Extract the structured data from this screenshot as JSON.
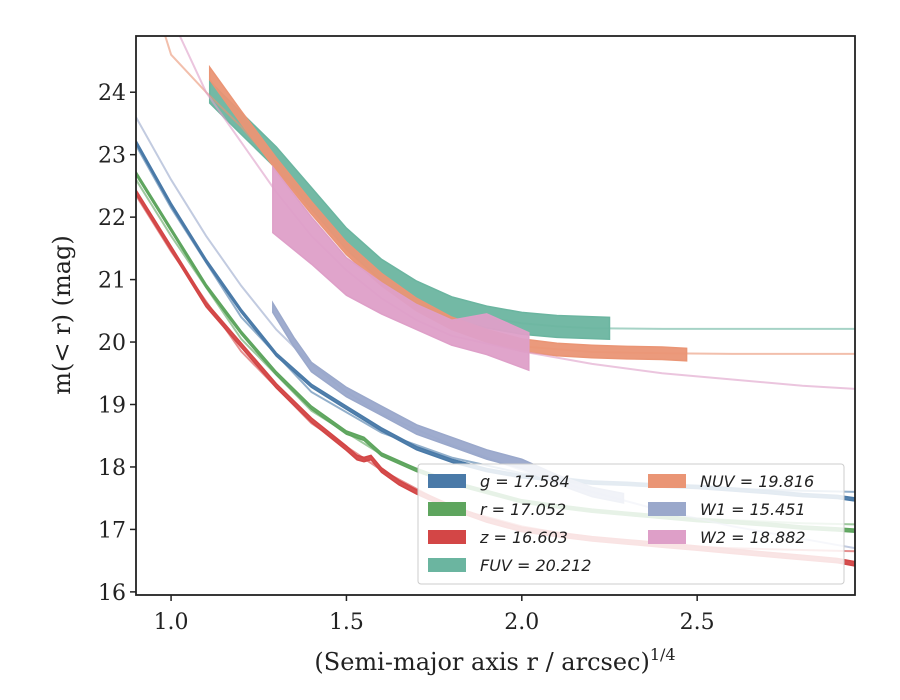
{
  "chart_data": {
    "type": "line",
    "xlabel": "(Semi-major axis r / arcsec)",
    "xlabel_exponent": "1/4",
    "ylabel": "m(< r) (mag)",
    "xlim": [
      0.9,
      2.95
    ],
    "ylim": [
      24.9,
      15.95
    ],
    "y_inverted": true,
    "x_ticks": [
      1.0,
      1.5,
      2.0,
      2.5
    ],
    "x_tick_labels": [
      "1.0",
      "1.5",
      "2.0",
      "2.5"
    ],
    "y_ticks": [
      16,
      17,
      18,
      19,
      20,
      21,
      22,
      23,
      24
    ],
    "y_tick_labels": [
      "16",
      "17",
      "18",
      "19",
      "20",
      "21",
      "22",
      "23",
      "24"
    ],
    "grid": false,
    "legend_position": "lower-right",
    "legend_columns": 2,
    "series": [
      {
        "name": "g",
        "legend_label": "g = 17.584",
        "color": "#4a7aa8",
        "band_width_mag": 0.05,
        "data": [
          [
            0.9,
            23.2
          ],
          [
            1.0,
            22.2
          ],
          [
            1.1,
            21.3
          ],
          [
            1.2,
            20.5
          ],
          [
            1.3,
            19.8
          ],
          [
            1.4,
            19.3
          ],
          [
            1.5,
            18.95
          ],
          [
            1.6,
            18.6
          ],
          [
            1.7,
            18.3
          ],
          [
            1.8,
            18.1
          ],
          [
            1.9,
            17.95
          ],
          [
            2.0,
            17.85
          ],
          [
            2.1,
            17.8
          ],
          [
            2.2,
            17.75
          ],
          [
            2.3,
            17.73
          ],
          [
            2.4,
            17.7
          ],
          [
            2.5,
            17.68
          ],
          [
            2.6,
            17.64
          ],
          [
            2.7,
            17.6
          ],
          [
            2.8,
            17.55
          ],
          [
            2.9,
            17.52
          ],
          [
            2.95,
            17.48
          ]
        ],
        "model": [
          [
            0.9,
            23.15
          ],
          [
            1.0,
            22.15
          ],
          [
            1.2,
            20.4
          ],
          [
            1.4,
            19.2
          ],
          [
            1.6,
            18.55
          ],
          [
            1.8,
            18.15
          ],
          [
            2.0,
            17.9
          ],
          [
            2.2,
            17.77
          ],
          [
            2.4,
            17.7
          ],
          [
            2.6,
            17.65
          ],
          [
            2.8,
            17.62
          ],
          [
            2.95,
            17.6
          ]
        ]
      },
      {
        "name": "r",
        "legend_label": "r = 17.052",
        "color": "#5ea55e",
        "band_width_mag": 0.05,
        "data": [
          [
            0.9,
            22.7
          ],
          [
            1.0,
            21.8
          ],
          [
            1.1,
            20.9
          ],
          [
            1.2,
            20.15
          ],
          [
            1.3,
            19.5
          ],
          [
            1.4,
            18.95
          ],
          [
            1.5,
            18.55
          ],
          [
            1.55,
            18.45
          ],
          [
            1.6,
            18.2
          ],
          [
            1.7,
            17.95
          ],
          [
            1.8,
            17.75
          ],
          [
            1.9,
            17.6
          ],
          [
            2.0,
            17.45
          ],
          [
            2.1,
            17.37
          ],
          [
            2.2,
            17.3
          ],
          [
            2.3,
            17.25
          ],
          [
            2.4,
            17.2
          ],
          [
            2.5,
            17.15
          ],
          [
            2.6,
            17.12
          ],
          [
            2.7,
            17.08
          ],
          [
            2.8,
            17.03
          ],
          [
            2.9,
            17.0
          ],
          [
            2.95,
            16.98
          ]
        ],
        "model": [
          [
            0.9,
            22.6
          ],
          [
            1.0,
            21.7
          ],
          [
            1.2,
            20.05
          ],
          [
            1.4,
            18.9
          ],
          [
            1.6,
            18.2
          ],
          [
            1.8,
            17.75
          ],
          [
            2.0,
            17.45
          ],
          [
            2.2,
            17.3
          ],
          [
            2.4,
            17.2
          ],
          [
            2.6,
            17.15
          ],
          [
            2.8,
            17.1
          ],
          [
            2.95,
            17.08
          ]
        ]
      },
      {
        "name": "z",
        "legend_label": "z = 16.603",
        "color": "#d34646",
        "band_width_mag": 0.07,
        "data": [
          [
            0.9,
            22.4
          ],
          [
            1.0,
            21.5
          ],
          [
            1.1,
            20.6
          ],
          [
            1.2,
            19.95
          ],
          [
            1.3,
            19.3
          ],
          [
            1.4,
            18.75
          ],
          [
            1.5,
            18.3
          ],
          [
            1.53,
            18.15
          ],
          [
            1.55,
            18.12
          ],
          [
            1.57,
            18.15
          ],
          [
            1.6,
            17.95
          ],
          [
            1.65,
            17.75
          ],
          [
            1.7,
            17.6
          ],
          [
            1.8,
            17.35
          ],
          [
            1.9,
            17.15
          ],
          [
            2.0,
            17.0
          ],
          [
            2.1,
            16.92
          ],
          [
            2.2,
            16.85
          ],
          [
            2.3,
            16.8
          ],
          [
            2.4,
            16.75
          ],
          [
            2.5,
            16.7
          ],
          [
            2.6,
            16.65
          ],
          [
            2.7,
            16.6
          ],
          [
            2.8,
            16.55
          ],
          [
            2.9,
            16.5
          ],
          [
            2.95,
            16.45
          ]
        ],
        "model": [
          [
            0.9,
            22.35
          ],
          [
            1.0,
            21.45
          ],
          [
            1.2,
            19.85
          ],
          [
            1.4,
            18.7
          ],
          [
            1.6,
            17.95
          ],
          [
            1.8,
            17.35
          ],
          [
            2.0,
            17.05
          ],
          [
            2.2,
            16.85
          ],
          [
            2.4,
            16.75
          ],
          [
            2.6,
            16.7
          ],
          [
            2.8,
            16.67
          ],
          [
            2.95,
            16.65
          ]
        ]
      },
      {
        "name": "FUV",
        "legend_label": "FUV = 20.212",
        "color": "#6bb5a0",
        "band_width_mag": 0.35,
        "data": [
          [
            1.11,
            24.0
          ],
          [
            1.2,
            23.5
          ],
          [
            1.3,
            22.95
          ],
          [
            1.4,
            22.3
          ],
          [
            1.5,
            21.65
          ],
          [
            1.6,
            21.15
          ],
          [
            1.7,
            20.8
          ],
          [
            1.8,
            20.55
          ],
          [
            1.9,
            20.4
          ],
          [
            2.0,
            20.3
          ],
          [
            2.1,
            20.25
          ],
          [
            2.25,
            20.22
          ]
        ],
        "model": [
          [
            1.9,
            20.4
          ],
          [
            2.0,
            20.3
          ],
          [
            2.1,
            20.25
          ],
          [
            2.2,
            20.22
          ],
          [
            2.4,
            20.21
          ],
          [
            2.6,
            20.21
          ],
          [
            2.95,
            20.21
          ]
        ]
      },
      {
        "name": "NUV",
        "legend_label": "NUV = 19.816",
        "color": "#ea9575",
        "band_width_mag": 0.2,
        "data": [
          [
            1.11,
            24.3
          ],
          [
            1.2,
            23.6
          ],
          [
            1.3,
            22.85
          ],
          [
            1.4,
            22.15
          ],
          [
            1.5,
            21.5
          ],
          [
            1.6,
            21.0
          ],
          [
            1.7,
            20.6
          ],
          [
            1.8,
            20.3
          ],
          [
            1.9,
            20.1
          ],
          [
            2.0,
            19.95
          ],
          [
            2.1,
            19.88
          ],
          [
            2.2,
            19.85
          ],
          [
            2.3,
            19.83
          ],
          [
            2.4,
            19.82
          ],
          [
            2.47,
            19.8
          ]
        ],
        "model": [
          [
            0.95,
            25.5
          ],
          [
            1.0,
            24.6
          ],
          [
            1.1,
            24.0
          ],
          [
            1.2,
            23.45
          ],
          [
            1.3,
            22.8
          ],
          [
            1.4,
            22.1
          ],
          [
            1.5,
            21.45
          ],
          [
            1.6,
            20.95
          ],
          [
            1.7,
            20.55
          ],
          [
            1.8,
            20.25
          ],
          [
            1.9,
            20.05
          ],
          [
            2.0,
            19.93
          ],
          [
            2.2,
            19.84
          ],
          [
            2.4,
            19.82
          ],
          [
            2.6,
            19.81
          ],
          [
            2.95,
            19.81
          ]
        ]
      },
      {
        "name": "W1",
        "legend_label": "W1 = 15.451",
        "color": "#9aa8cb",
        "band_width_mag": 0.15,
        "data": [
          [
            1.29,
            20.55
          ],
          [
            1.35,
            20.0
          ],
          [
            1.4,
            19.6
          ],
          [
            1.5,
            19.2
          ],
          [
            1.6,
            18.9
          ],
          [
            1.7,
            18.6
          ],
          [
            1.8,
            18.4
          ],
          [
            1.9,
            18.2
          ],
          [
            2.0,
            18.05
          ],
          [
            2.1,
            17.8
          ],
          [
            2.2,
            17.6
          ],
          [
            2.29,
            17.5
          ]
        ],
        "model": [
          [
            0.9,
            23.6
          ],
          [
            1.0,
            22.6
          ],
          [
            1.1,
            21.7
          ],
          [
            1.2,
            20.9
          ],
          [
            1.3,
            20.2
          ],
          [
            1.4,
            19.65
          ],
          [
            1.5,
            19.2
          ],
          [
            1.6,
            18.85
          ],
          [
            1.8,
            18.35
          ],
          [
            2.0,
            17.95
          ],
          [
            2.2,
            17.6
          ],
          [
            2.4,
            17.3
          ],
          [
            2.6,
            17.05
          ],
          [
            2.8,
            16.85
          ],
          [
            2.95,
            16.7
          ]
        ]
      },
      {
        "name": "W2",
        "legend_label": "W2 = 18.882",
        "color": "#de9fc8",
        "band_lower": [
          [
            1.29,
            22.8
          ],
          [
            1.4,
            22.0
          ],
          [
            1.5,
            21.35
          ],
          [
            1.6,
            20.95
          ],
          [
            1.7,
            20.6
          ],
          [
            1.8,
            20.35
          ],
          [
            1.9,
            20.45
          ],
          [
            2.02,
            20.15
          ]
        ],
        "band_upper": [
          [
            1.29,
            21.75
          ],
          [
            1.4,
            21.25
          ],
          [
            1.5,
            20.75
          ],
          [
            1.6,
            20.45
          ],
          [
            1.7,
            20.2
          ],
          [
            1.8,
            19.95
          ],
          [
            1.9,
            19.8
          ],
          [
            2.02,
            19.55
          ]
        ],
        "model": [
          [
            1.0,
            25.2
          ],
          [
            1.05,
            24.6
          ],
          [
            1.1,
            24.0
          ],
          [
            1.2,
            23.2
          ],
          [
            1.3,
            22.4
          ],
          [
            1.4,
            21.7
          ],
          [
            1.5,
            21.15
          ],
          [
            1.6,
            20.7
          ],
          [
            1.7,
            20.35
          ],
          [
            1.8,
            20.1
          ],
          [
            2.0,
            19.85
          ],
          [
            2.2,
            19.65
          ],
          [
            2.4,
            19.5
          ],
          [
            2.6,
            19.4
          ],
          [
            2.8,
            19.3
          ],
          [
            2.95,
            19.25
          ]
        ]
      }
    ]
  },
  "legend": {
    "items": [
      {
        "key": "g",
        "label": "g = 17.584",
        "color": "#4a7aa8"
      },
      {
        "key": "r",
        "label": "r = 17.052",
        "color": "#5ea55e"
      },
      {
        "key": "z",
        "label": "z = 16.603",
        "color": "#d34646"
      },
      {
        "key": "FUV",
        "label": "FUV = 20.212",
        "color": "#6bb5a0"
      },
      {
        "key": "NUV",
        "label": "NUV = 19.816",
        "color": "#ea9575"
      },
      {
        "key": "W1",
        "label": "W1 = 15.451",
        "color": "#9aa8cb"
      },
      {
        "key": "W2",
        "label": "W2 = 18.882",
        "color": "#de9fc8"
      }
    ]
  }
}
